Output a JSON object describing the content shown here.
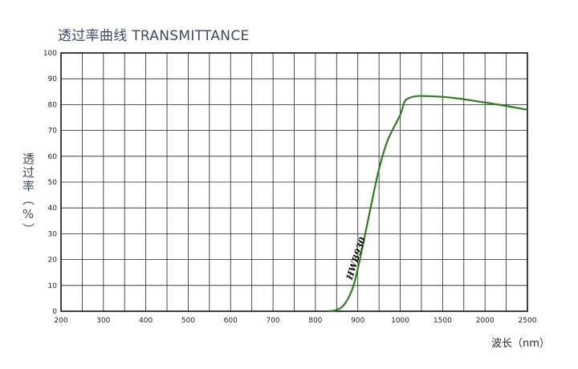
{
  "chart_data": {
    "type": "line",
    "title": "透过率曲线 TRANSMITTANCE",
    "ylabel": "透过率（%）",
    "xlabel": "波长（nm）",
    "x_ticks": [
      "200",
      "300",
      "400",
      "500",
      "600",
      "700",
      "800",
      "900",
      "1000",
      "1500",
      "2000",
      "2500"
    ],
    "y_ticks": [
      "0",
      "10",
      "20",
      "30",
      "40",
      "50",
      "60",
      "70",
      "80",
      "90",
      "100"
    ],
    "ylim": [
      0,
      100
    ],
    "grid": true,
    "series": [
      {
        "name": "HWB930",
        "color": "#2e7d1e",
        "points": [
          [
            828,
            0
          ],
          [
            850,
            0.5
          ],
          [
            870,
            3
          ],
          [
            890,
            10
          ],
          [
            910,
            24
          ],
          [
            930,
            40
          ],
          [
            950,
            55
          ],
          [
            970,
            66
          ],
          [
            1000,
            76
          ],
          [
            1050,
            81
          ],
          [
            1100,
            82.5
          ],
          [
            1200,
            83.3
          ],
          [
            1300,
            83.3
          ],
          [
            1500,
            83
          ],
          [
            1700,
            82.3
          ],
          [
            1900,
            81.3
          ],
          [
            2100,
            80.3
          ],
          [
            2300,
            79.2
          ],
          [
            2500,
            78
          ]
        ]
      }
    ]
  }
}
